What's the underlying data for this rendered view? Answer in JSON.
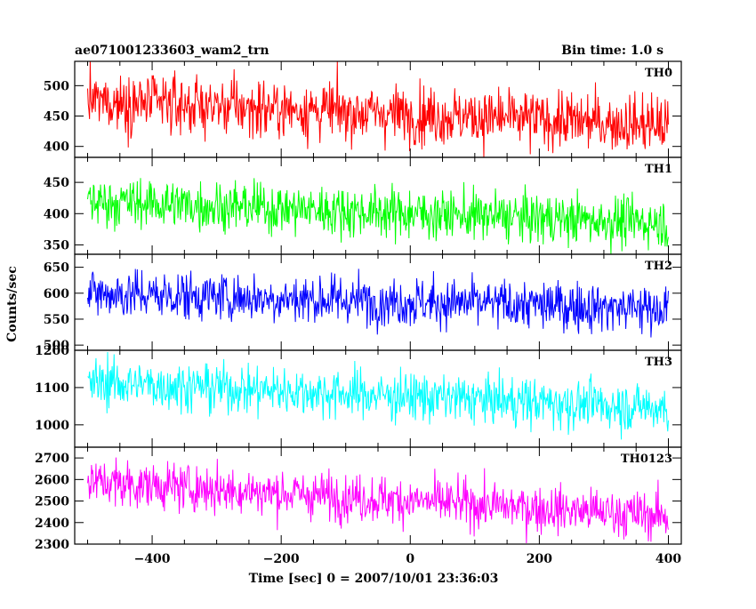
{
  "header": {
    "title": "ae071001233603_wam2_trn",
    "bin_time": "Bin time: 1.0 s"
  },
  "chart_data": {
    "type": "line",
    "xlabel": "Time [sec] 0 = 2007/10/01 23:36:03",
    "ylabel": "Counts/sec",
    "xlim": [
      -520,
      420
    ],
    "xticks": [
      -400,
      -200,
      0,
      200,
      400
    ],
    "x_range": [
      -500,
      400
    ],
    "bin_time_s": 1.0,
    "panels": [
      {
        "name": "TH0",
        "color": "#ff0000",
        "ylim": [
          382,
          540
        ],
        "yticks": [
          400,
          450,
          500
        ],
        "trend": [
          475,
          435
        ],
        "noise_sd": 24
      },
      {
        "name": "TH1",
        "color": "#00ff00",
        "ylim": [
          335,
          490
        ],
        "yticks": [
          350,
          400,
          450
        ],
        "trend": [
          420,
          385
        ],
        "noise_sd": 20
      },
      {
        "name": "TH2",
        "color": "#0000ff",
        "ylim": [
          490,
          675
        ],
        "yticks": [
          500,
          550,
          600,
          650
        ],
        "trend": [
          600,
          570
        ],
        "noise_sd": 24
      },
      {
        "name": "TH3",
        "color": "#00ffff",
        "ylim": [
          940,
          1200
        ],
        "yticks": [
          1000,
          1100,
          1200
        ],
        "trend": [
          1115,
          1045
        ],
        "noise_sd": 33
      },
      {
        "name": "TH0123",
        "color": "#ff00ff",
        "ylim": [
          2300,
          2750
        ],
        "yticks": [
          2300,
          2400,
          2500,
          2600,
          2700
        ],
        "trend": [
          2590,
          2430
        ],
        "noise_sd": 55
      }
    ]
  }
}
